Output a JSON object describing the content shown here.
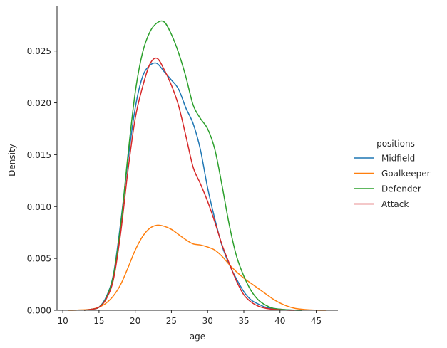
{
  "chart_data": {
    "type": "line",
    "title": "",
    "xlabel": "age",
    "ylabel": "Density",
    "xlim": [
      9.2,
      48.0
    ],
    "ylim": [
      0,
      0.0293
    ],
    "xticks": [
      10,
      15,
      20,
      25,
      30,
      35,
      40,
      45
    ],
    "xtick_labels": [
      "10",
      "15",
      "20",
      "25",
      "30",
      "35",
      "40",
      "45"
    ],
    "yticks": [
      0,
      0.005,
      0.01,
      0.015,
      0.02,
      0.025
    ],
    "ytick_labels": [
      "0.000",
      "0.005",
      "0.010",
      "0.015",
      "0.020",
      "0.025"
    ],
    "grid": false,
    "legend": {
      "title": "positions",
      "placement": "right"
    },
    "series": [
      {
        "name": "Midfield",
        "color": "#1f77b4",
        "x": [
          13,
          14,
          15,
          16,
          17,
          18,
          19,
          20,
          21,
          22,
          23,
          24,
          25,
          26,
          27,
          28,
          29,
          30,
          31,
          32,
          33,
          34,
          35,
          36,
          37,
          38,
          39,
          40,
          41,
          42,
          43
        ],
        "y": [
          0.0,
          0.0001,
          0.0003,
          0.0013,
          0.0035,
          0.0085,
          0.0145,
          0.0195,
          0.0225,
          0.0236,
          0.0238,
          0.023,
          0.0222,
          0.0213,
          0.0195,
          0.018,
          0.0155,
          0.0118,
          0.0088,
          0.0062,
          0.0044,
          0.003,
          0.0018,
          0.001,
          0.0006,
          0.0003,
          0.0002,
          0.0001,
          5e-05,
          2e-05,
          0.0
        ]
      },
      {
        "name": "Goalkeeper",
        "color": "#ff7f0e",
        "x": [
          10.8,
          12,
          14,
          15,
          16,
          17,
          18,
          19,
          20,
          21,
          22,
          23,
          24,
          25,
          26,
          27,
          28,
          29,
          30,
          31,
          32,
          33,
          34,
          35,
          36,
          37,
          38,
          39,
          40,
          41,
          42,
          43,
          44,
          45,
          46.3
        ],
        "y": [
          0.0,
          2e-05,
          0.0001,
          0.0003,
          0.0007,
          0.0014,
          0.0025,
          0.0041,
          0.0058,
          0.0071,
          0.0079,
          0.0082,
          0.0081,
          0.0078,
          0.0073,
          0.0068,
          0.0064,
          0.0063,
          0.0061,
          0.0058,
          0.0052,
          0.0044,
          0.0037,
          0.0031,
          0.0026,
          0.0021,
          0.0016,
          0.0011,
          0.0007,
          0.0004,
          0.0002,
          0.0001,
          4e-05,
          1e-05,
          0.0
        ]
      },
      {
        "name": "Defender",
        "color": "#2ca02c",
        "x": [
          13,
          14,
          15,
          16,
          17,
          18,
          19,
          20,
          21,
          22,
          23,
          24,
          25,
          26,
          27,
          28,
          29,
          30,
          31,
          32,
          33,
          34,
          35,
          36,
          37,
          38,
          39,
          40,
          41,
          42,
          43
        ],
        "y": [
          0.0,
          0.0001,
          0.0003,
          0.0012,
          0.0034,
          0.0082,
          0.015,
          0.021,
          0.0248,
          0.0268,
          0.0277,
          0.0278,
          0.0266,
          0.0248,
          0.0225,
          0.0198,
          0.0185,
          0.0175,
          0.0155,
          0.012,
          0.0082,
          0.0052,
          0.0033,
          0.0019,
          0.001,
          0.0005,
          0.0002,
          0.0001,
          4e-05,
          1e-05,
          0.0
        ]
      },
      {
        "name": "Attack",
        "color": "#d62728",
        "x": [
          13,
          14,
          15,
          16,
          17,
          18,
          19,
          20,
          21,
          22,
          23,
          24,
          25,
          26,
          27,
          28,
          29,
          30,
          31,
          32,
          33,
          34,
          35,
          36,
          37,
          38,
          39,
          40,
          41,
          42
        ],
        "y": [
          0.0,
          0.0001,
          0.0003,
          0.0011,
          0.003,
          0.0075,
          0.0135,
          0.0185,
          0.0215,
          0.0237,
          0.0243,
          0.0232,
          0.0217,
          0.0197,
          0.0168,
          0.0138,
          0.0122,
          0.0105,
          0.0085,
          0.0063,
          0.0045,
          0.0028,
          0.0015,
          0.0008,
          0.0004,
          0.0002,
          0.0001,
          4e-05,
          1e-05,
          0.0
        ]
      }
    ]
  }
}
